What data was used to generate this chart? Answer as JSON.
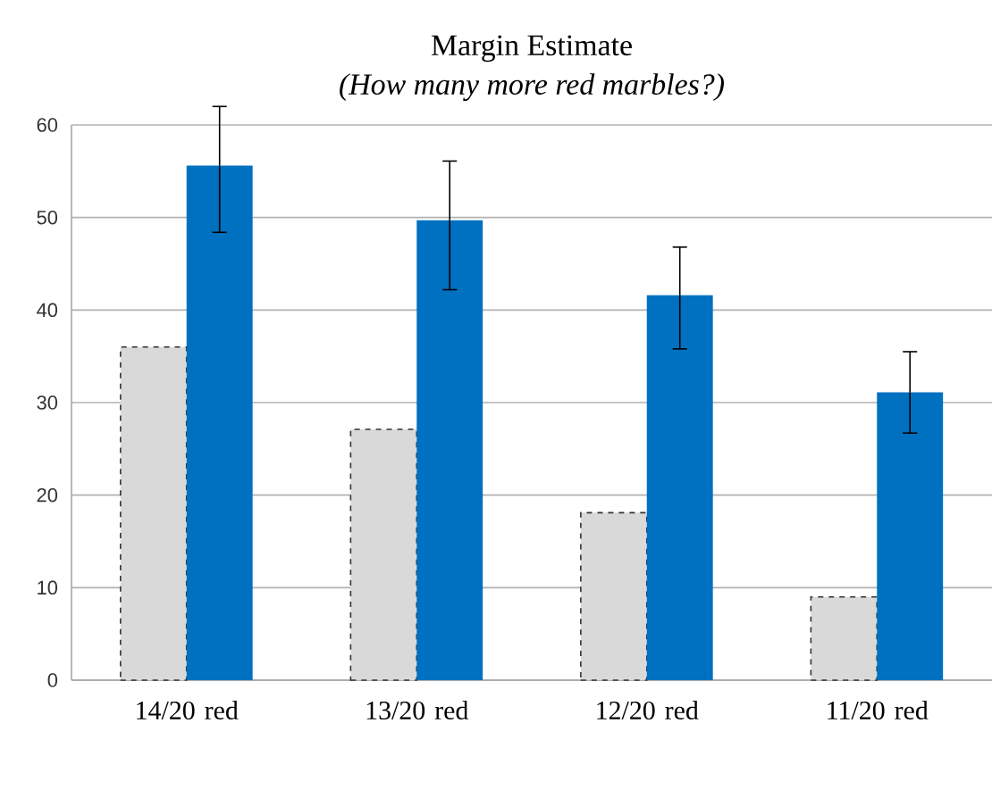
{
  "chart_data": {
    "type": "bar",
    "title": "Margin Estimate",
    "subtitle": "(How many more red marbles?)",
    "categories": [
      "14/20 red",
      "13/20 red",
      "12/20 red",
      "11/20 red"
    ],
    "series": [
      {
        "color": "#d9d9d9",
        "line_style": "dashed",
        "values": [
          36,
          27.1,
          18.1,
          9
        ]
      },
      {
        "color": "#0070c0",
        "values": [
          55.6,
          49.7,
          41.6,
          31.1
        ],
        "errors": [
          [
            48.4,
            62
          ],
          [
            42.2,
            56.1
          ],
          [
            35.8,
            46.8
          ],
          [
            26.7,
            35.5
          ]
        ]
      }
    ],
    "ylim": [
      0,
      60
    ],
    "yticks": [
      0,
      10,
      20,
      30,
      40,
      50,
      60
    ],
    "grid": "y"
  }
}
